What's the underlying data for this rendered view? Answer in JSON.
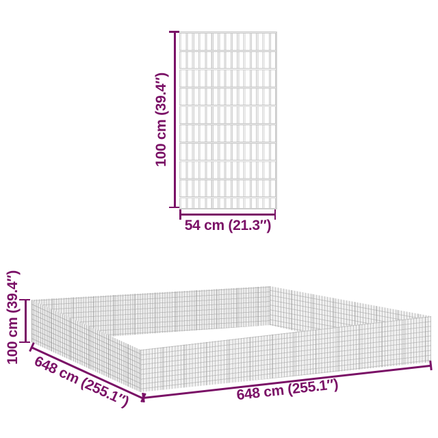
{
  "figure": {
    "accent_color": "#7a1066",
    "mesh_wire_color": "#c9c9c9",
    "background_color": "#ffffff"
  },
  "panel_view": {
    "description": "single wire mesh panel, front view",
    "height_label": "100 cm (39.4″)",
    "width_label": "54 cm (21.3″)"
  },
  "enclosure_view": {
    "description": "assembled square mesh enclosure, perspective view",
    "height_label": "100 cm (39.4″)",
    "left_side_label": "648 cm (255.1″)",
    "front_side_label": "648 cm (255.1″)"
  }
}
